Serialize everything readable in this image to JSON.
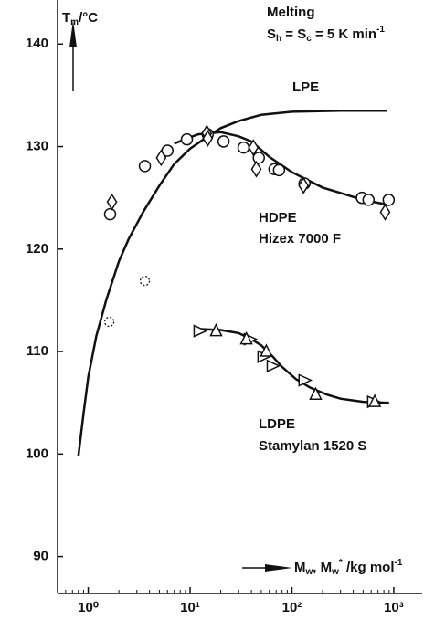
{
  "chart_data": {
    "type": "scatter",
    "xscale": "log",
    "xlim": [
      0.5,
      1900
    ],
    "ylim": [
      86.4,
      144.3
    ],
    "xticks": [
      {
        "value": 1,
        "label": "10⁰"
      },
      {
        "value": 10,
        "label": "10¹"
      },
      {
        "value": 100,
        "label": "10²"
      },
      {
        "value": 1000,
        "label": "10³"
      }
    ],
    "yticks": [
      90,
      100,
      110,
      120,
      130,
      140
    ],
    "y_label": {
      "symbol": "T",
      "subscript": "m",
      "unit": "/°C"
    },
    "x_label": {
      "symbol1": "M",
      "sub1": "w",
      "sep": ", ",
      "symbol2": "M",
      "sub2": "w",
      "sup2": "*",
      "unit": " /kg mol",
      "unit_sup": "-1"
    },
    "annotations": {
      "condition": "Melting",
      "rate": {
        "s1": "S",
        "sub1": "h",
        "eq1": " = ",
        "s2": "S",
        "sub2": "c",
        "eq2": " = 5 K min",
        "sup": "-1"
      },
      "lpe": "LPE",
      "hdpe": "HDPE",
      "hdpe_grade": "Hizex 7000 F",
      "ldpe": "LDPE",
      "ldpe_grade": "Stamylan 1520 S"
    },
    "color": "#111111",
    "series": [
      {
        "marker": "line",
        "x": [
          0.8,
          0.9,
          1.0,
          1.2,
          1.5,
          2,
          2.5,
          3.5,
          5,
          7,
          10,
          15,
          20,
          30,
          50,
          100,
          300,
          850
        ],
        "values": [
          99.8,
          104,
          107.5,
          111.5,
          115,
          118.8,
          121,
          123.7,
          126.2,
          128.3,
          129.8,
          131,
          131.8,
          132.5,
          133.1,
          133.4,
          133.5,
          133.5
        ]
      },
      {
        "marker": "line",
        "x": [
          7,
          12,
          20,
          30,
          40,
          60,
          100,
          200,
          500,
          900
        ],
        "values": [
          130.3,
          131.2,
          131.4,
          131.0,
          130.5,
          129.0,
          127.5,
          126.0,
          124.8,
          124.3
        ]
      },
      {
        "marker": "line",
        "x": [
          12,
          20,
          30,
          40,
          50,
          65,
          80,
          110,
          150,
          220,
          300,
          500,
          900
        ],
        "values": [
          112.2,
          112.1,
          111.8,
          111.2,
          110.6,
          109.5,
          108.5,
          107.3,
          106.5,
          105.8,
          105.4,
          105.1,
          105.0
        ]
      },
      {
        "marker": "circle",
        "x": [
          1.64,
          3.6,
          6.0,
          9.3,
          14.9,
          21.3,
          33.5,
          47.3,
          67.4,
          74.7,
          133,
          487,
          565,
          891
        ],
        "values": [
          123.4,
          128.1,
          129.6,
          130.7,
          131.2,
          130.5,
          129.9,
          128.9,
          127.8,
          127.7,
          126.4,
          125.0,
          124.8,
          124.8
        ]
      },
      {
        "marker": "diamond",
        "x": [
          1.71,
          5.2,
          14.6,
          14.9,
          41.8,
          44.7,
          130,
          822
        ],
        "values": [
          124.6,
          128.9,
          131.3,
          130.8,
          129.9,
          127.8,
          126.2,
          123.6
        ]
      },
      {
        "marker": "triangle-right",
        "x": [
          12.4,
          38.6,
          52.6,
          64.8,
          133,
          628
        ],
        "values": [
          112.0,
          111.2,
          109.5,
          108.6,
          107.2,
          105.1
        ]
      },
      {
        "marker": "triangle-up",
        "x": [
          18,
          35.7,
          56,
          171,
          650
        ],
        "values": [
          112.0,
          111.2,
          110.0,
          105.8,
          105.1
        ]
      },
      {
        "marker": "dashed-circle",
        "x": [
          1.61,
          3.6
        ],
        "values": [
          112.9,
          116.9
        ]
      }
    ]
  }
}
